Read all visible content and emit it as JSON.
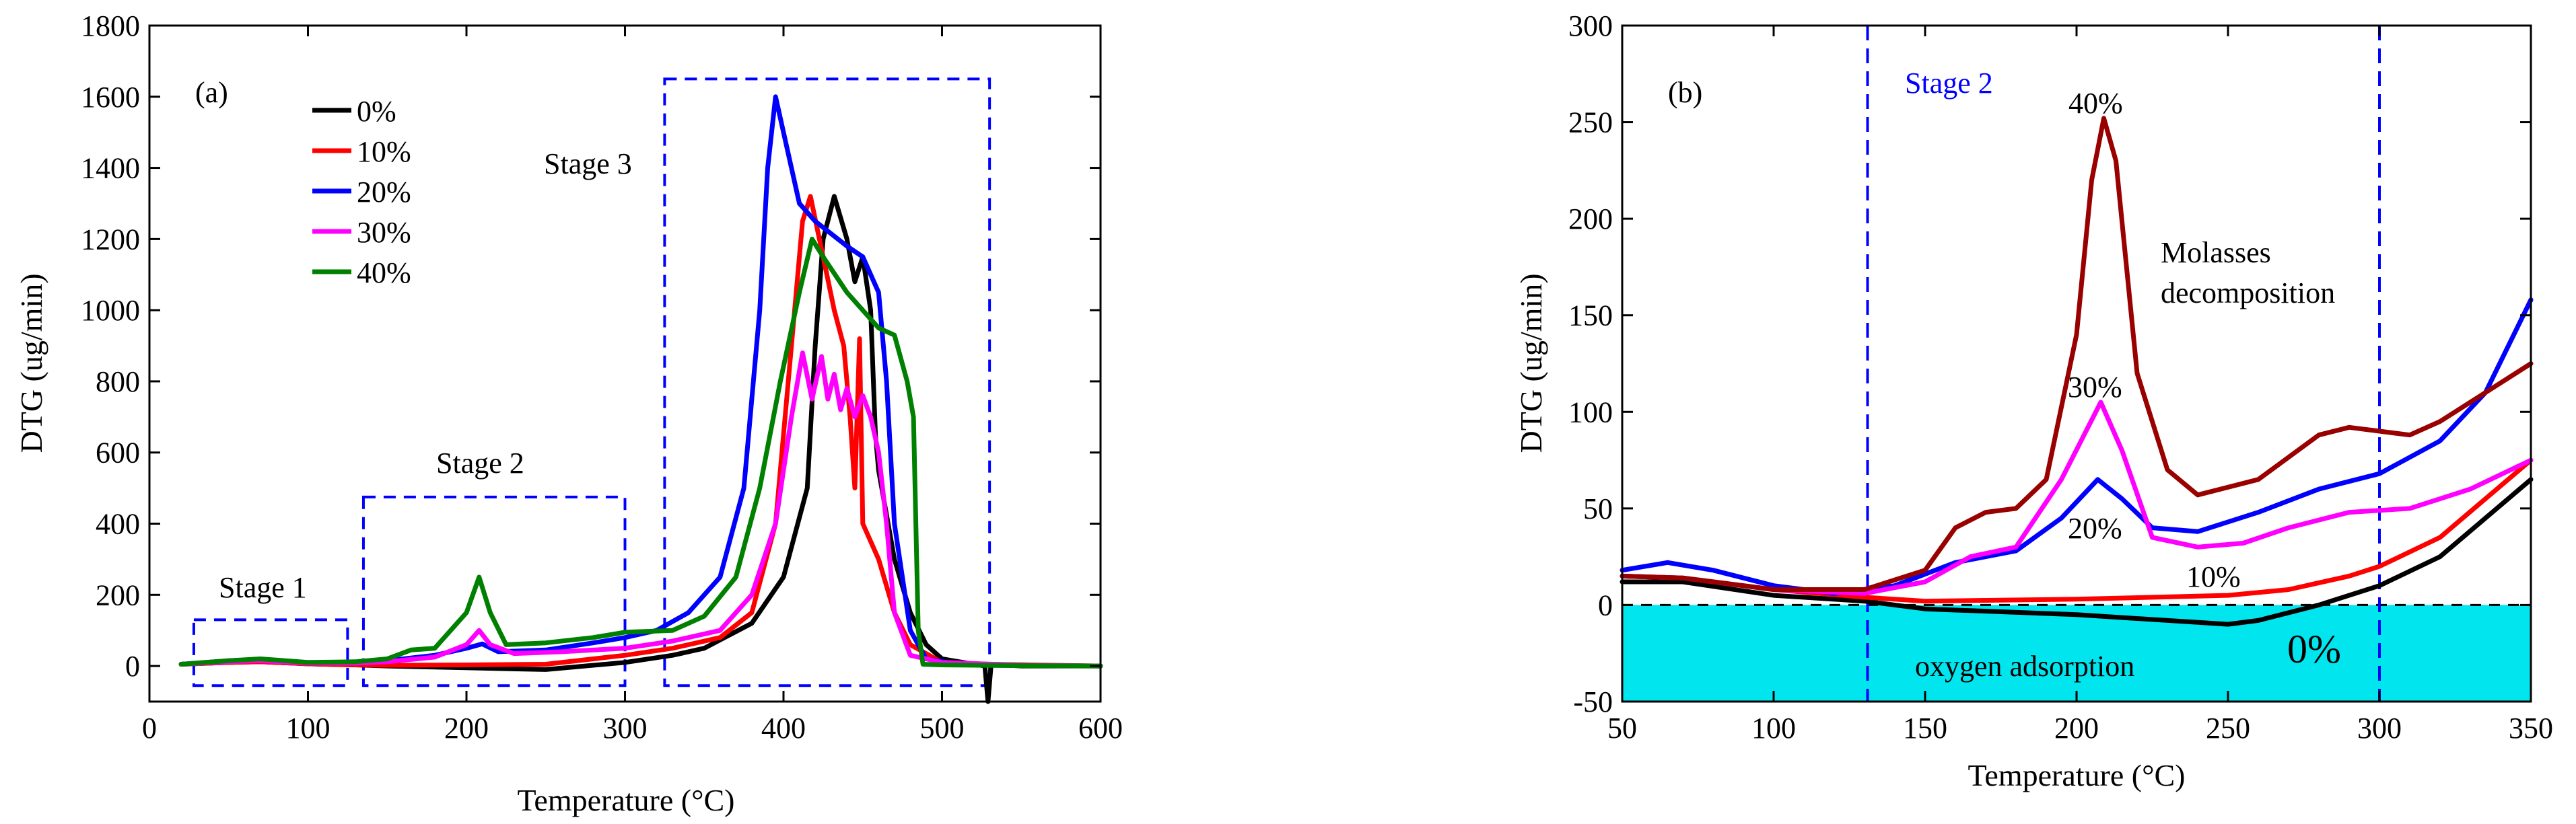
{
  "chart_data": [
    {
      "panel_label": "(a)",
      "type": "line",
      "xlabel": "Temperature (°C)",
      "ylabel": "DTG (ug/min)",
      "xlim": [
        0,
        600
      ],
      "ylim": [
        -100,
        1800
      ],
      "xticks": [
        0,
        100,
        200,
        300,
        400,
        500,
        600
      ],
      "yticks": [
        0,
        200,
        400,
        600,
        800,
        1000,
        1200,
        1400,
        1600,
        1800
      ],
      "legend_position": "top-left",
      "series": [
        {
          "name": "0%",
          "color": "#000000",
          "points": [
            [
              20,
              5
            ],
            [
              50,
              10
            ],
            [
              70,
              12
            ],
            [
              100,
              6
            ],
            [
              130,
              3
            ],
            [
              150,
              0
            ],
            [
              200,
              -5
            ],
            [
              250,
              -10
            ],
            [
              300,
              10
            ],
            [
              330,
              30
            ],
            [
              350,
              50
            ],
            [
              380,
              120
            ],
            [
              400,
              250
            ],
            [
              415,
              500
            ],
            [
              420,
              900
            ],
            [
              425,
              1200
            ],
            [
              432,
              1320
            ],
            [
              440,
              1200
            ],
            [
              445,
              1080
            ],
            [
              450,
              1150
            ],
            [
              455,
              1000
            ],
            [
              458,
              650
            ],
            [
              460,
              550
            ],
            [
              470,
              300
            ],
            [
              480,
              150
            ],
            [
              490,
              60
            ],
            [
              500,
              20
            ],
            [
              520,
              5
            ],
            [
              527,
              0
            ],
            [
              529,
              -110
            ],
            [
              531,
              5
            ],
            [
              550,
              0
            ],
            [
              600,
              0
            ]
          ]
        },
        {
          "name": "10%",
          "color": "#ff0000",
          "points": [
            [
              20,
              5
            ],
            [
              50,
              10
            ],
            [
              70,
              12
            ],
            [
              100,
              6
            ],
            [
              130,
              3
            ],
            [
              150,
              2
            ],
            [
              200,
              3
            ],
            [
              250,
              5
            ],
            [
              300,
              30
            ],
            [
              330,
              50
            ],
            [
              360,
              80
            ],
            [
              380,
              150
            ],
            [
              395,
              400
            ],
            [
              405,
              900
            ],
            [
              412,
              1250
            ],
            [
              417,
              1320
            ],
            [
              425,
              1150
            ],
            [
              432,
              1000
            ],
            [
              438,
              900
            ],
            [
              442,
              700
            ],
            [
              445,
              500
            ],
            [
              448,
              920
            ],
            [
              450,
              400
            ],
            [
              460,
              300
            ],
            [
              470,
              150
            ],
            [
              480,
              60
            ],
            [
              500,
              10
            ],
            [
              530,
              5
            ],
            [
              600,
              0
            ]
          ]
        },
        {
          "name": "20%",
          "color": "#0000ff",
          "points": [
            [
              20,
              5
            ],
            [
              50,
              15
            ],
            [
              70,
              18
            ],
            [
              100,
              8
            ],
            [
              130,
              10
            ],
            [
              150,
              15
            ],
            [
              180,
              30
            ],
            [
              200,
              50
            ],
            [
              210,
              62
            ],
            [
              220,
              40
            ],
            [
              250,
              45
            ],
            [
              280,
              65
            ],
            [
              300,
              80
            ],
            [
              320,
              100
            ],
            [
              340,
              150
            ],
            [
              360,
              250
            ],
            [
              375,
              500
            ],
            [
              385,
              1000
            ],
            [
              390,
              1400
            ],
            [
              395,
              1600
            ],
            [
              400,
              1500
            ],
            [
              410,
              1300
            ],
            [
              420,
              1250
            ],
            [
              440,
              1180
            ],
            [
              450,
              1150
            ],
            [
              460,
              1050
            ],
            [
              465,
              800
            ],
            [
              470,
              400
            ],
            [
              480,
              100
            ],
            [
              490,
              20
            ],
            [
              510,
              5
            ],
            [
              530,
              2
            ],
            [
              600,
              0
            ]
          ]
        },
        {
          "name": "30%",
          "color": "#ff00ff",
          "points": [
            [
              20,
              5
            ],
            [
              50,
              12
            ],
            [
              70,
              15
            ],
            [
              100,
              8
            ],
            [
              130,
              8
            ],
            [
              150,
              12
            ],
            [
              180,
              25
            ],
            [
              200,
              60
            ],
            [
              208,
              100
            ],
            [
              215,
              60
            ],
            [
              230,
              35
            ],
            [
              260,
              40
            ],
            [
              300,
              50
            ],
            [
              330,
              70
            ],
            [
              360,
              100
            ],
            [
              380,
              200
            ],
            [
              395,
              400
            ],
            [
              405,
              700
            ],
            [
              412,
              880
            ],
            [
              418,
              750
            ],
            [
              424,
              870
            ],
            [
              428,
              750
            ],
            [
              432,
              820
            ],
            [
              436,
              720
            ],
            [
              440,
              780
            ],
            [
              445,
              700
            ],
            [
              450,
              760
            ],
            [
              455,
              700
            ],
            [
              460,
              600
            ],
            [
              465,
              400
            ],
            [
              470,
              150
            ],
            [
              480,
              30
            ],
            [
              500,
              10
            ],
            [
              550,
              2
            ],
            [
              600,
              0
            ]
          ]
        },
        {
          "name": "40%",
          "color": "#008000",
          "points": [
            [
              20,
              5
            ],
            [
              50,
              15
            ],
            [
              70,
              20
            ],
            [
              100,
              10
            ],
            [
              130,
              12
            ],
            [
              150,
              20
            ],
            [
              165,
              45
            ],
            [
              180,
              50
            ],
            [
              200,
              150
            ],
            [
              208,
              250
            ],
            [
              215,
              150
            ],
            [
              225,
              60
            ],
            [
              250,
              65
            ],
            [
              280,
              80
            ],
            [
              300,
              95
            ],
            [
              330,
              100
            ],
            [
              350,
              140
            ],
            [
              370,
              250
            ],
            [
              385,
              500
            ],
            [
              398,
              800
            ],
            [
              410,
              1050
            ],
            [
              418,
              1200
            ],
            [
              425,
              1150
            ],
            [
              440,
              1050
            ],
            [
              460,
              950
            ],
            [
              470,
              930
            ],
            [
              478,
              800
            ],
            [
              482,
              700
            ],
            [
              485,
              100
            ],
            [
              488,
              5
            ],
            [
              500,
              3
            ],
            [
              550,
              1
            ],
            [
              600,
              0
            ]
          ]
        }
      ],
      "annotations": [
        {
          "text": "Stage 1",
          "x": 80,
          "y": 230
        },
        {
          "text": "Stage 2",
          "x": 220,
          "y": 560
        },
        {
          "text": "Stage 3",
          "x": 255,
          "y": 1400
        }
      ],
      "boxes": [
        {
          "name": "stage-1-box",
          "x0": 28,
          "x1": 125,
          "y0": -55,
          "y1": 130
        },
        {
          "name": "stage-2-box",
          "x0": 135,
          "x1": 300,
          "y0": -55,
          "y1": 475
        },
        {
          "name": "stage-3-box",
          "x0": 325,
          "x1": 530,
          "y0": -55,
          "y1": 1650
        }
      ]
    },
    {
      "panel_label": "(b)",
      "type": "line",
      "xlabel": "Temperature (°C)",
      "ylabel": "DTG (ug/min)",
      "xlim": [
        50,
        350
      ],
      "ylim": [
        -50,
        300
      ],
      "xticks": [
        50,
        100,
        150,
        200,
        250,
        300,
        350
      ],
      "yticks": [
        -50,
        0,
        50,
        100,
        150,
        200,
        250,
        300
      ],
      "shaded_region": {
        "label": "oxygen adsorption",
        "y0": -50,
        "y1": 0,
        "color": "#00e5ee"
      },
      "zero_line": "dashed",
      "vertical_lines": [
        131,
        300
      ],
      "series": [
        {
          "name": "0%",
          "color": "#000000",
          "points": [
            [
              50,
              12
            ],
            [
              70,
              12
            ],
            [
              100,
              5
            ],
            [
              130,
              2
            ],
            [
              150,
              -2
            ],
            [
              200,
              -5
            ],
            [
              250,
              -10
            ],
            [
              260,
              -8
            ],
            [
              280,
              0
            ],
            [
              300,
              10
            ],
            [
              320,
              25
            ],
            [
              350,
              65
            ]
          ]
        },
        {
          "name": "10%",
          "color": "#ff0000",
          "points": [
            [
              50,
              15
            ],
            [
              70,
              14
            ],
            [
              100,
              8
            ],
            [
              130,
              4
            ],
            [
              150,
              2
            ],
            [
              200,
              3
            ],
            [
              250,
              5
            ],
            [
              270,
              8
            ],
            [
              290,
              15
            ],
            [
              300,
              20
            ],
            [
              320,
              35
            ],
            [
              350,
              75
            ]
          ]
        },
        {
          "name": "20%",
          "color": "#0000ff",
          "points": [
            [
              50,
              18
            ],
            [
              65,
              22
            ],
            [
              80,
              18
            ],
            [
              100,
              10
            ],
            [
              120,
              6
            ],
            [
              140,
              10
            ],
            [
              160,
              22
            ],
            [
              180,
              28
            ],
            [
              195,
              45
            ],
            [
              207,
              65
            ],
            [
              215,
              55
            ],
            [
              225,
              40
            ],
            [
              240,
              38
            ],
            [
              260,
              48
            ],
            [
              280,
              60
            ],
            [
              300,
              68
            ],
            [
              320,
              85
            ],
            [
              335,
              110
            ],
            [
              350,
              158
            ]
          ]
        },
        {
          "name": "30%",
          "color": "#ff00ff",
          "points": [
            [
              50,
              15
            ],
            [
              70,
              14
            ],
            [
              100,
              8
            ],
            [
              130,
              6
            ],
            [
              150,
              12
            ],
            [
              165,
              25
            ],
            [
              180,
              30
            ],
            [
              195,
              65
            ],
            [
              208,
              105
            ],
            [
              215,
              80
            ],
            [
              225,
              35
            ],
            [
              240,
              30
            ],
            [
              255,
              32
            ],
            [
              270,
              40
            ],
            [
              290,
              48
            ],
            [
              310,
              50
            ],
            [
              330,
              60
            ],
            [
              350,
              75
            ]
          ]
        },
        {
          "name": "40%",
          "color": "#990000",
          "points": [
            [
              50,
              15
            ],
            [
              70,
              14
            ],
            [
              100,
              8
            ],
            [
              130,
              8
            ],
            [
              150,
              18
            ],
            [
              160,
              40
            ],
            [
              170,
              48
            ],
            [
              180,
              50
            ],
            [
              190,
              65
            ],
            [
              200,
              140
            ],
            [
              205,
              220
            ],
            [
              209,
              252
            ],
            [
              213,
              230
            ],
            [
              220,
              120
            ],
            [
              230,
              70
            ],
            [
              240,
              57
            ],
            [
              260,
              65
            ],
            [
              280,
              88
            ],
            [
              290,
              92
            ],
            [
              300,
              90
            ],
            [
              310,
              88
            ],
            [
              320,
              95
            ],
            [
              335,
              110
            ],
            [
              350,
              125
            ]
          ]
        }
      ],
      "annotations": [
        {
          "text": "Stage 2",
          "color": "#0000ff"
        },
        {
          "text": "40%"
        },
        {
          "text": "30%"
        },
        {
          "text": "20%"
        },
        {
          "text": "10%"
        },
        {
          "text": "0%"
        },
        {
          "text": "Molasses"
        },
        {
          "text": "decomposition"
        },
        {
          "text": "oxygen adsorption"
        }
      ]
    }
  ]
}
